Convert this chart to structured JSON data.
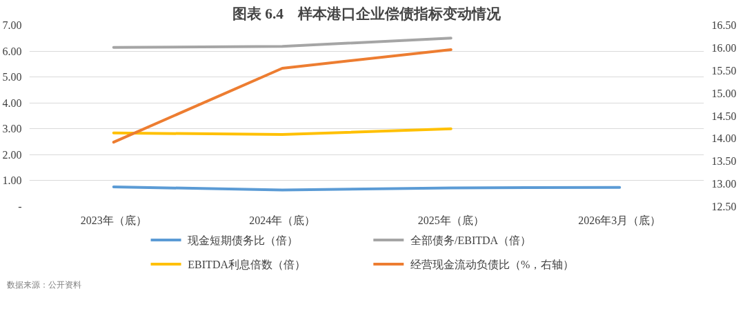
{
  "chart_data": {
    "type": "line",
    "title": "图表 6.4　样本港口企业偿债指标变动情况",
    "categories": [
      "2023年（底）",
      "2024年（底）",
      "2025年（底）",
      "2026年3月（底）"
    ],
    "series": [
      {
        "name": "现金短期债务比（倍）",
        "color": "#5b9bd5",
        "values": [
          0.76,
          0.64,
          0.72,
          0.74
        ]
      },
      {
        "name": "全部债务/EBITDA（倍）",
        "color": "#a5a5a5",
        "values": [
          6.14,
          6.18,
          6.5,
          null
        ]
      },
      {
        "name": "EBITDA利息倍数（倍）",
        "color": "#ffc000",
        "values": [
          2.84,
          2.78,
          3.0,
          null
        ]
      },
      {
        "name": "经营现金流动负债比（%，右轴）",
        "color": "#ed7d31",
        "axis": "y2",
        "values": [
          13.92,
          15.55,
          15.96,
          null
        ]
      }
    ],
    "ylim": [
      0,
      7
    ],
    "yticks": [
      {
        "value": 0,
        "label": "-"
      },
      {
        "value": 1,
        "label": "1.00"
      },
      {
        "value": 2,
        "label": "2.00"
      },
      {
        "value": 3,
        "label": "3.00"
      },
      {
        "value": 4,
        "label": "4.00"
      },
      {
        "value": 5,
        "label": "5.00"
      },
      {
        "value": 6,
        "label": "6.00"
      },
      {
        "value": 7,
        "label": "7.00"
      }
    ],
    "y2lim": [
      12.5,
      16.5
    ],
    "y2ticks": [
      {
        "value": 12.5,
        "label": "12.50"
      },
      {
        "value": 13,
        "label": "13.00"
      },
      {
        "value": 13.5,
        "label": "13.50"
      },
      {
        "value": 14,
        "label": "14.00"
      },
      {
        "value": 14.5,
        "label": "14.50"
      },
      {
        "value": 15,
        "label": "15.00"
      },
      {
        "value": 15.5,
        "label": "15.50"
      },
      {
        "value": 16,
        "label": "16.00"
      },
      {
        "value": 16.5,
        "label": "16.50"
      }
    ],
    "grid": "y",
    "legend": "bottom",
    "marker": "none",
    "line_style": "solid",
    "annotations": [
      "数据来源：公开资料"
    ]
  }
}
